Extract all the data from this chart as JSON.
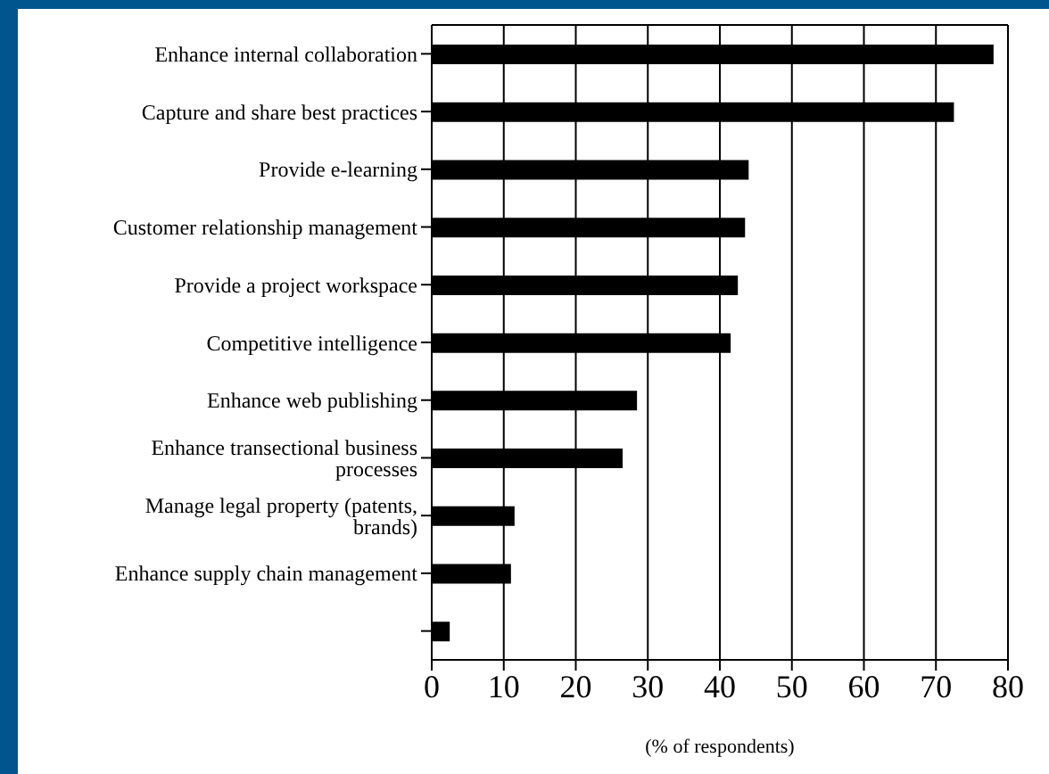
{
  "chart_data": {
    "type": "bar",
    "orientation": "horizontal",
    "xlabel": "(% of respondents)",
    "categories": [
      "Enhance internal collaboration",
      "Capture and share best practices",
      "Provide e-learning",
      "Customer relationship management",
      "Provide a project workspace",
      "Competitive intelligence",
      "Enhance web publishing",
      "Enhance transectional business processes",
      "Manage legal property (patents, brands)",
      "Enhance supply chain management",
      null
    ],
    "series": [
      {
        "color": "#000000",
        "values": [
          78,
          72.5,
          44,
          43.5,
          42.5,
          41.5,
          28.5,
          26.5,
          11.5,
          11,
          2.5
        ]
      }
    ],
    "xlim": [
      0,
      80
    ],
    "xticks": [
      0,
      10,
      20,
      30,
      40,
      50,
      60,
      70,
      80
    ],
    "grid": "x",
    "legend": false
  }
}
